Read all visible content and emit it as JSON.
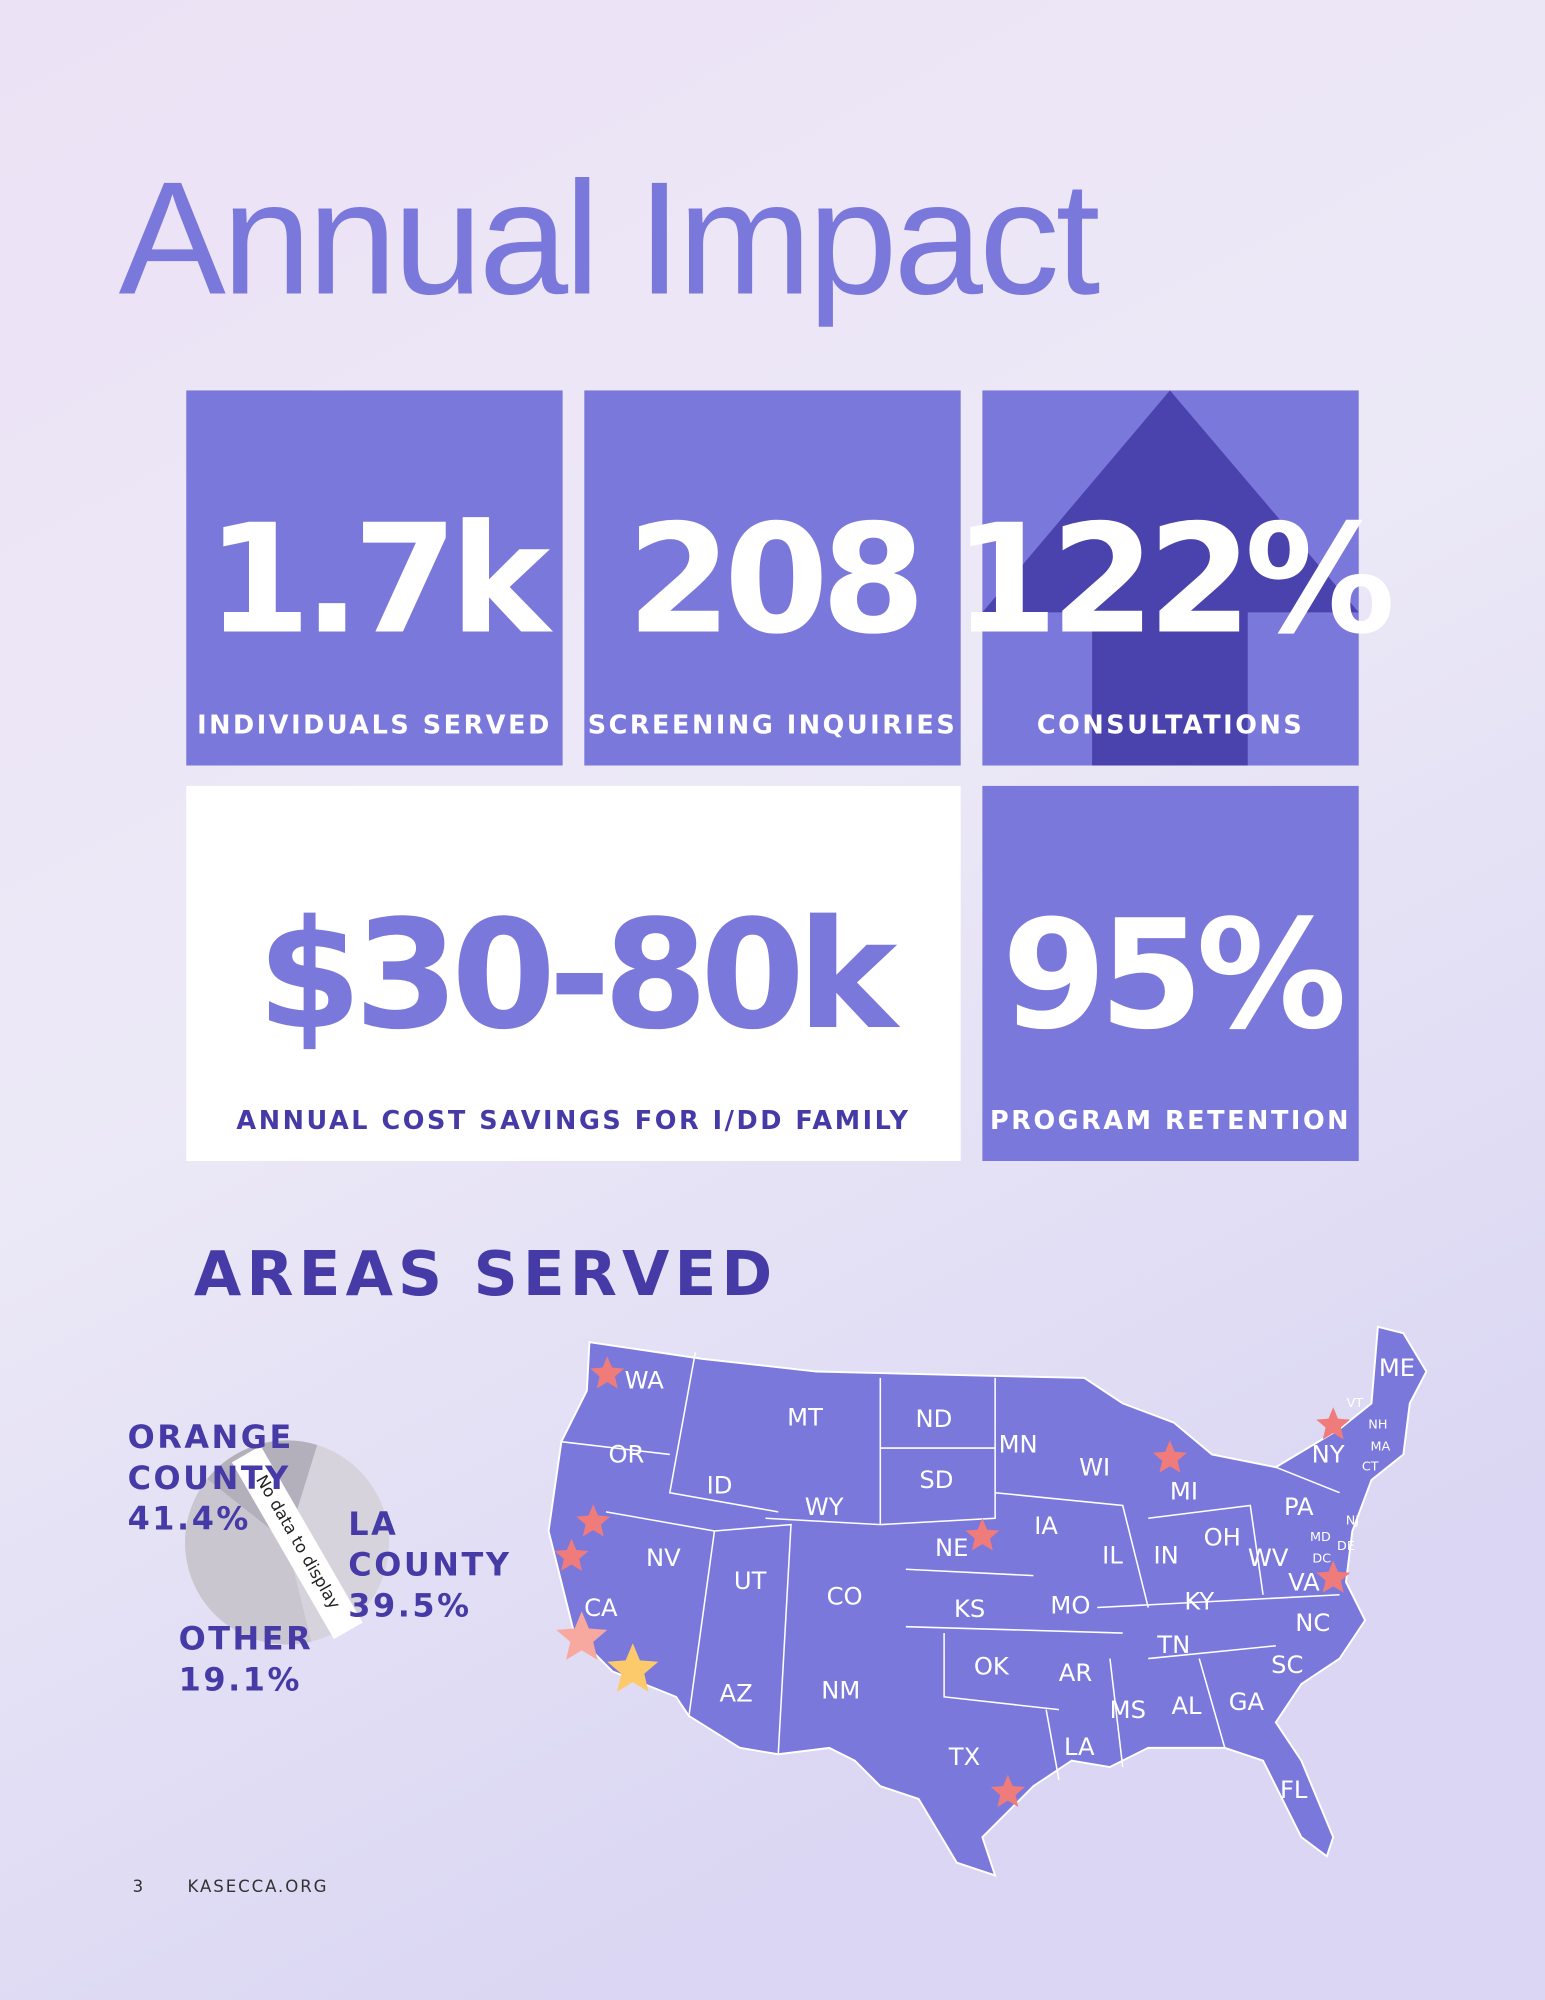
{
  "header": {
    "title": "Annual Impact"
  },
  "stats": [
    {
      "value": "1.7k",
      "label": "INDIVIDUALS SERVED"
    },
    {
      "value": "208",
      "label": "SCREENING INQUIRIES"
    },
    {
      "value": "122%",
      "label": "CONSULTATIONS"
    },
    {
      "value": "$30-80k",
      "label": "ANNUAL COST SAVINGS FOR I/DD FAMILY"
    },
    {
      "value": "95%",
      "label": "PROGRAM RETENTION"
    }
  ],
  "areas": {
    "title": "AREAS SERVED",
    "states": [
      "WA",
      "OR",
      "ID",
      "MT",
      "ND",
      "MN",
      "WI",
      "MI",
      "NY",
      "ME",
      "VT",
      "NH",
      "MA",
      "CT",
      "PA",
      "NJ",
      "MD",
      "DE",
      "DC",
      "OH",
      "IN",
      "IL",
      "IA",
      "NE",
      "SD",
      "WY",
      "NV",
      "UT",
      "CO",
      "KS",
      "MO",
      "KY",
      "WV",
      "VA",
      "NC",
      "TN",
      "SC",
      "GA",
      "AL",
      "MS",
      "AR",
      "OK",
      "LA",
      "TX",
      "NM",
      "AZ",
      "CA",
      "FL"
    ]
  },
  "chart_data": {
    "type": "pie",
    "categories": [
      "ORANGE COUNTY",
      "LA COUNTY",
      "OTHER"
    ],
    "values": [
      41.4,
      39.5,
      19.1
    ],
    "value_labels": [
      "41.4%",
      "39.5%",
      "19.1%"
    ],
    "colors": [
      "#d6d3dc",
      "#c9c6d0",
      "#b3b0bb"
    ],
    "annotation": "No data to display"
  },
  "footer": {
    "page": "3",
    "site": "KASECCA.ORG"
  }
}
